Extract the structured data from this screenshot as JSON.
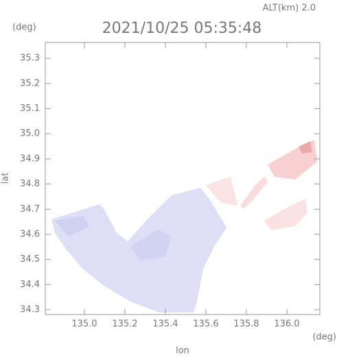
{
  "chart_data": {
    "type": "map",
    "title": "2021/10/25 05:35:48",
    "annotation": "ALT(km) 2.0",
    "x_label": "lon",
    "x_unit": "(deg)",
    "y_label": "lat",
    "y_unit": "(deg)",
    "xlim": [
      134.807,
      136.163
    ],
    "ylim": [
      34.281,
      35.363
    ],
    "xticks": [
      {
        "value": 135,
        "label": "135.0"
      },
      135.2,
      135.4,
      135.6,
      135.8,
      {
        "value": 136,
        "label": "136.0"
      }
    ],
    "yticks": [
      34.3,
      34.4,
      34.5,
      34.6,
      34.7,
      34.8,
      34.9,
      {
        "value": 35,
        "label": "35.0"
      },
      35.1,
      35.2,
      35.3
    ]
  }
}
